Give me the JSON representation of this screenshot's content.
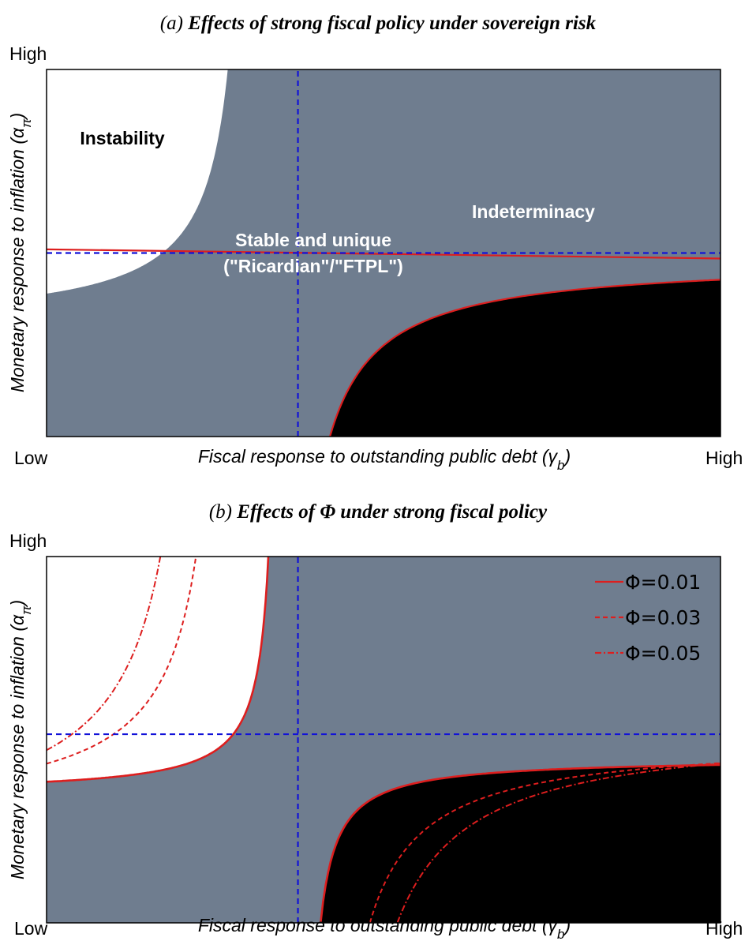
{
  "colors": {
    "stable": "#6f7d8f",
    "instability": "#ffffff",
    "indeterminacy": "#000000",
    "boundary": "#dd1e1e",
    "reference": "#1212d8"
  },
  "chart_data": [
    {
      "type": "area",
      "title_mark": "(a)",
      "title": "Effects of strong fiscal policy under sovereign risk",
      "xlabel": "Fiscal response to outstanding public debt (γb)",
      "xlabel_main": "Fiscal response to outstanding public debt (γ",
      "xlabel_sub": "b",
      "xlabel_end": ")",
      "ylabel": "Monetary response to inflation (απ)",
      "ylabel_main": "Monetary response to inflation (α",
      "ylabel_sub": "π",
      "ylabel_end": ")",
      "x_low": "Low",
      "x_high": "High",
      "y_high": "High",
      "xlim": [
        0,
        1
      ],
      "ylim": [
        0,
        1
      ],
      "grid": false,
      "regions": [
        {
          "name": "Instability",
          "label": "Instability"
        },
        {
          "name": "Stable and unique",
          "label_line1": "Stable and unique",
          "label_line2": "(\"Ricardian\"/\"FTPL\")"
        },
        {
          "name": "Indeterminacy",
          "label": "Indeterminacy"
        }
      ],
      "instability_boundary": {
        "x_asymptote": 0.3075,
        "y_asymptote": 0.3015,
        "c": 0.027
      },
      "indeterminacy_boundary": {
        "x_asymptote": 0.3455,
        "y_asymptote": 0.4825,
        "c": 0.0362
      },
      "near_flat_boundary": {
        "x": [
          0,
          1
        ],
        "y": [
          0.51,
          0.485
        ]
      },
      "reference_lines": {
        "x": 0.373,
        "y": 0.5
      }
    },
    {
      "type": "area",
      "title_mark": "(b)",
      "title": "Effects of Φ under strong fiscal policy",
      "xlabel": "Fiscal response to outstanding public debt (γb)",
      "xlabel_main": "Fiscal response to outstanding public debt (γ",
      "xlabel_sub": "b",
      "xlabel_end": ")",
      "ylabel": "Monetary response to inflation (απ)",
      "ylabel_main": "Monetary response to inflation (α",
      "ylabel_sub": "π",
      "ylabel_end": ")",
      "x_low": "Low",
      "x_high": "High",
      "y_high": "High",
      "xlim": [
        0,
        1
      ],
      "ylim": [
        0,
        1
      ],
      "grid": false,
      "legend_position": "top-right",
      "series": [
        {
          "name": "Φ=0.01",
          "style": "solid",
          "instability_boundary": {
            "x_asymptote": 0.3465,
            "y_asymptote": 0.3525,
            "c": 0.0113
          },
          "indeterminacy_boundary": {
            "x_asymptote": 0.3815,
            "y_asymptote": 0.4495,
            "c": 0.0113
          }
        },
        {
          "name": "Φ=0.03",
          "style": "dashed",
          "instability_boundary": {
            "x_asymptote": 0.2785,
            "y_asymptote": 0.2895,
            "c": 0.0404
          },
          "indeterminacy_boundary": {
            "x_asymptote": 0.3995,
            "y_asymptote": 0.5035,
            "c": 0.0404
          }
        },
        {
          "name": "Φ=0.05",
          "style": "dashdot",
          "instability_boundary": {
            "x_asymptote": 0.2455,
            "y_asymptote": 0.2315,
            "c": 0.0589
          },
          "indeterminacy_boundary": {
            "x_asymptote": 0.4105,
            "y_asymptote": 0.5355,
            "c": 0.0589
          }
        }
      ],
      "reference_lines": {
        "x": 0.373,
        "y": 0.515
      }
    }
  ]
}
